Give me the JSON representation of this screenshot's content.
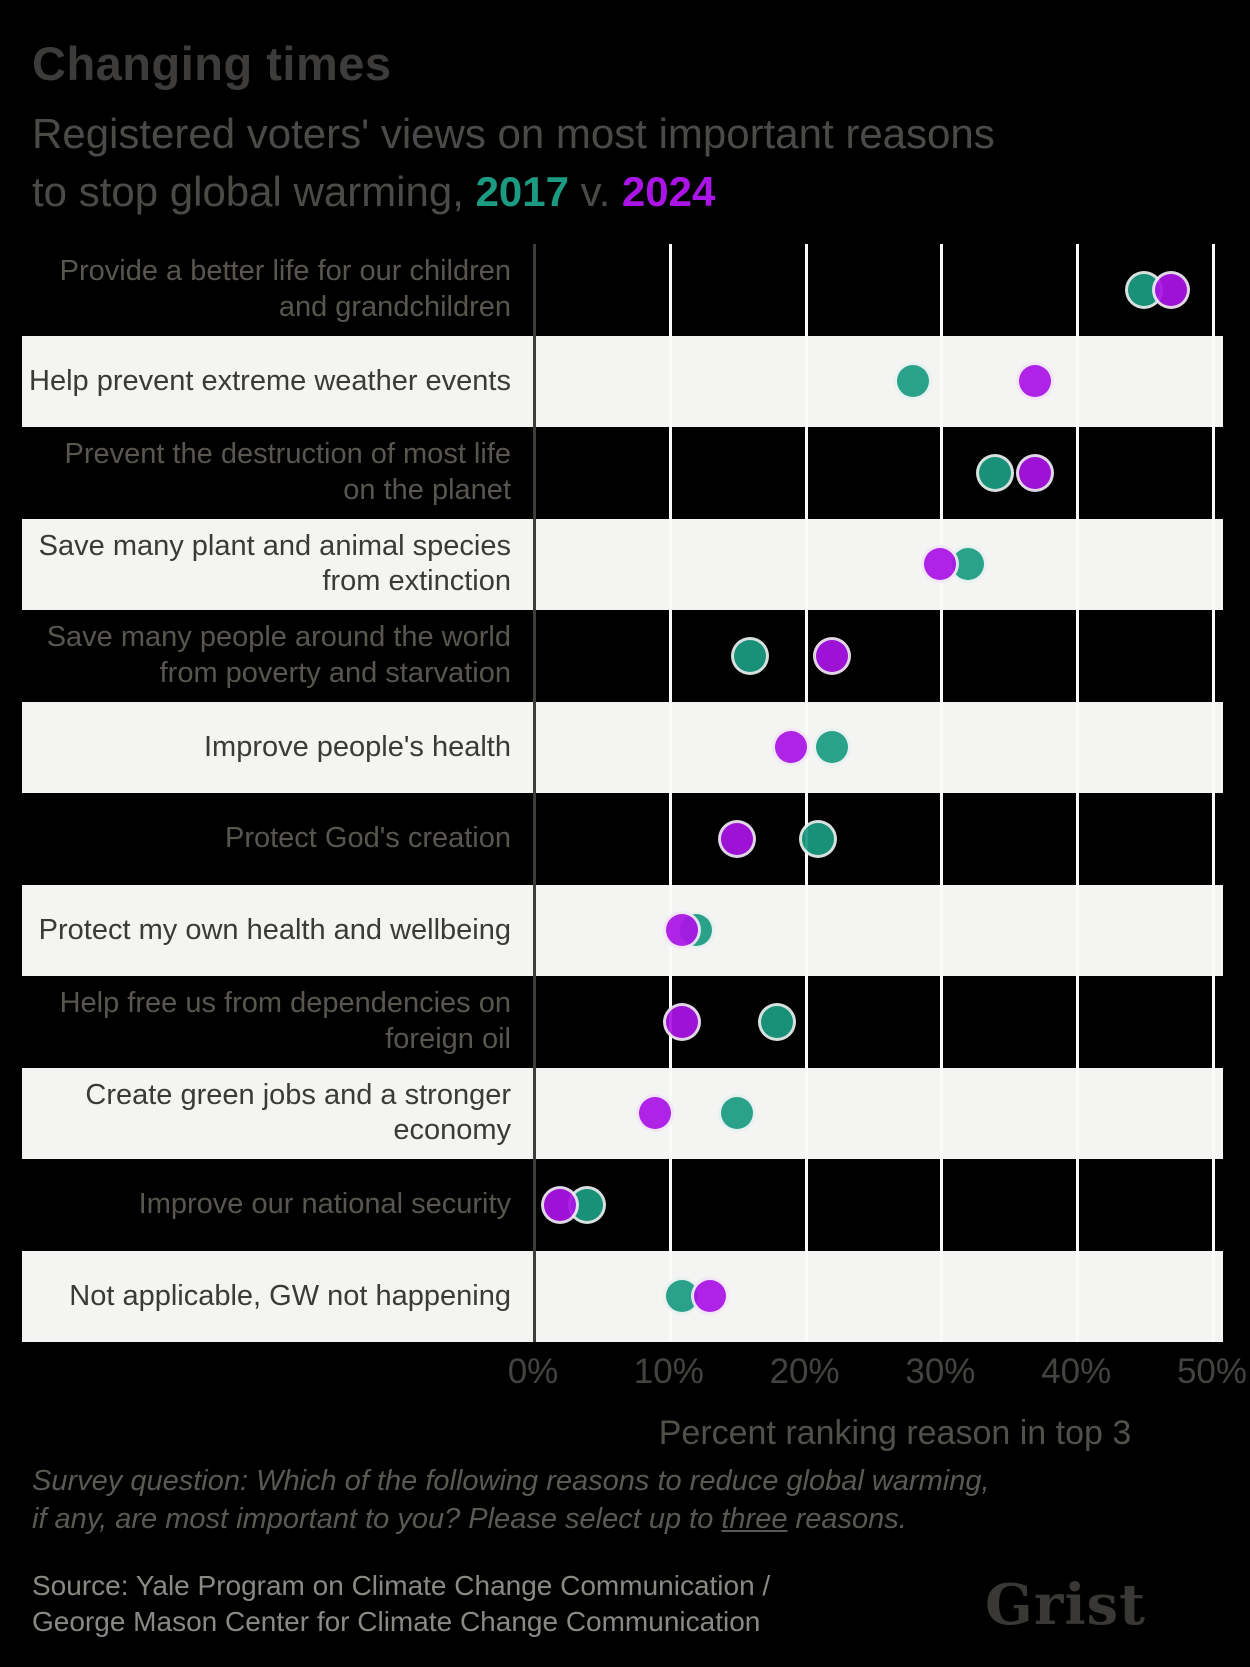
{
  "title": "Changing times",
  "subtitle": {
    "line1": "Registered voters' views on most important reasons",
    "line2_pre": "to stop global warming, ",
    "year1": "2017",
    "separator": " v. ",
    "year2": "2024"
  },
  "colors": {
    "teal": "#1b9c82",
    "purple": "#aa14e6",
    "band_light": "#f4f4f3",
    "background": "#000000"
  },
  "chart_data": {
    "type": "scatter",
    "variant": "dot-plot-comparison",
    "categories": [
      "Provide a better life for our children and grandchildren",
      "Help prevent extreme weather events",
      "Prevent the destruction of most life on the planet",
      "Save many plant and animal species from extinction",
      "Save many people around the world from poverty and starvation",
      "Improve people's health",
      "Protect God's creation",
      "Protect my own health and wellbeing",
      "Help free us from dependencies on foreign oil",
      "Create green jobs and a stronger economy",
      "Improve our national security",
      "Not applicable, GW not happening"
    ],
    "series": [
      {
        "name": "2017",
        "color": "#1b9c82",
        "values": [
          45,
          28,
          34,
          32,
          16,
          22,
          21,
          12,
          18,
          15,
          4,
          11
        ]
      },
      {
        "name": "2024",
        "color": "#aa14e6",
        "values": [
          47,
          37,
          37,
          30,
          22,
          19,
          15,
          11,
          11,
          9,
          2,
          13
        ]
      }
    ],
    "xlabel": "Percent ranking reason in top 3",
    "ylabel": "",
    "xlim": [
      0,
      50.8
    ],
    "x_ticks": [
      0,
      10,
      20,
      30,
      40,
      50
    ],
    "grid": "vertical-white-lines",
    "legend_position": "in-subtitle",
    "row_banding": "alternating black / light"
  },
  "axis": {
    "tick_labels": [
      "0%",
      "10%",
      "20%",
      "30%",
      "40%",
      "50%"
    ],
    "xlabel": "Percent ranking reason in top 3"
  },
  "footer": {
    "survey_line1": "Survey question: Which of the following reasons to reduce global warming,",
    "survey_line2_pre": "if any, are most important to you? Please select up to ",
    "survey_underlined": "three",
    "survey_line2_post": " reasons.",
    "source_line1": "Source: Yale Program on Climate Change Communication /",
    "source_line2": "George Mason Center for Climate Change Communication",
    "logo": "Grist"
  }
}
